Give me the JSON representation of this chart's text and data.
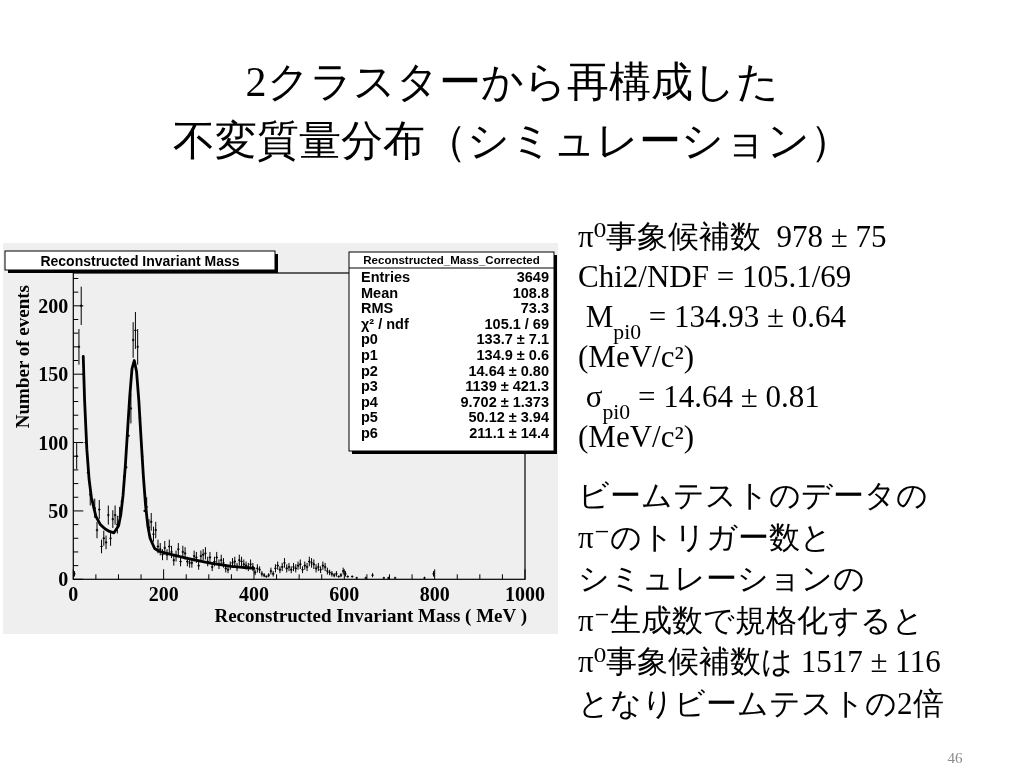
{
  "chart_data": {
    "type": "scatter",
    "title": "2クラスターから再構成した",
    "subtitle": "不変質量分布（シミュレーション）",
    "xlabel": "Reconstructed Invariant Mass ( MeV )",
    "ylabel": "Number of events",
    "xlim": [
      0,
      1000
    ],
    "ylim": [
      0,
      224
    ],
    "xticks": [
      0,
      {
        "value": 50,
        "label": null
      },
      {
        "value": 100,
        "label": null
      },
      {
        "value": 150,
        "label": null
      },
      200,
      {
        "value": 250,
        "label": null
      },
      {
        "value": 300,
        "label": null
      },
      {
        "value": 350,
        "label": null
      },
      400,
      {
        "value": 450,
        "label": null
      },
      {
        "value": 500,
        "label": null
      },
      {
        "value": 550,
        "label": null
      },
      600,
      {
        "value": 650,
        "label": null
      },
      {
        "value": 700,
        "label": null
      },
      {
        "value": 750,
        "label": null
      },
      800,
      {
        "value": 850,
        "label": null
      },
      {
        "value": 900,
        "label": null
      },
      {
        "value": 950,
        "label": null
      },
      1000
    ],
    "yticks": [
      0,
      {
        "value": 10,
        "label": null
      },
      {
        "value": 20,
        "label": null
      },
      {
        "value": 30,
        "label": null
      },
      {
        "value": 40,
        "label": null
      },
      50,
      {
        "value": 60,
        "label": null
      },
      {
        "value": 70,
        "label": null
      },
      {
        "value": 80,
        "label": null
      },
      {
        "value": 90,
        "label": null
      },
      100,
      {
        "value": 110,
        "label": null
      },
      {
        "value": 120,
        "label": null
      },
      {
        "value": 130,
        "label": null
      },
      {
        "value": 140,
        "label": null
      },
      150,
      {
        "value": 160,
        "label": null
      },
      {
        "value": 170,
        "label": null
      },
      {
        "value": 180,
        "label": null
      },
      {
        "value": 190,
        "label": null
      },
      200,
      {
        "value": 210,
        "label": null
      },
      {
        "value": 220,
        "label": null
      }
    ],
    "series": [
      {
        "color": "#000000",
        "marker": "cross",
        "x": [
          2.5,
          7.5,
          12.5,
          17.5,
          22.5,
          27.5,
          32.5,
          37.5,
          42.5,
          47.5,
          52.5,
          57.5,
          62.5,
          67.5,
          72.5,
          77.5,
          82.5,
          87.5,
          92.5,
          97.5,
          102.5,
          107.5,
          112.5,
          117.5,
          122.5,
          127.5,
          132.5,
          137.5,
          142.5,
          147.5,
          152.5,
          157.5,
          162.5,
          167.5,
          172.5,
          177.5,
          182.5,
          187.5,
          192.5,
          197.5,
          202.5,
          207.5,
          212.5,
          217.5,
          222.5,
          227.5,
          232.5,
          237.5,
          242.5,
          247.5,
          252.5,
          257.5,
          262.5,
          267.5,
          272.5,
          277.5,
          282.5,
          287.5,
          292.5,
          297.5,
          302.5,
          307.5,
          312.5,
          317.5,
          322.5,
          327.5,
          332.5,
          337.5,
          342.5,
          347.5,
          352.5,
          357.5,
          362.5,
          367.5,
          372.5,
          377.5,
          382.5,
          387.5,
          392.5,
          397.5,
          402.5,
          407.5,
          412.5,
          417.5,
          422.5,
          427.5,
          432.5,
          437.5,
          442.5,
          447.5,
          452.5,
          457.5,
          462.5,
          467.5,
          472.5,
          477.5,
          482.5,
          487.5,
          492.5,
          497.5,
          502.5,
          507.5,
          512.5,
          517.5,
          522.5,
          527.5,
          532.5,
          537.5,
          542.5,
          547.5,
          552.5,
          557.5,
          562.5,
          567.5,
          572.5,
          577.5,
          582.5,
          587.5,
          592.5,
          597.5,
          602.5,
          607.5,
          617.5,
          627.5,
          647.5,
          662.5,
          687.5,
          697.5,
          712.5,
          777.5,
          797.5
        ],
        "values": [
          4,
          90,
          170,
          200,
          150,
          100,
          78,
          62,
          57,
          52,
          36,
          51,
          24,
          30,
          27,
          47,
          30,
          44,
          47,
          40,
          46,
          57,
          75,
          82,
          105,
          125,
          175,
          182,
          170,
          118,
          90,
          50,
          53,
          38,
          42,
          33,
          36,
          24,
          22,
          18,
          23,
          18,
          24,
          20,
          14,
          17,
          22,
          13,
          20,
          19,
          13,
          12,
          12,
          17,
          16,
          10,
          17,
          18,
          19,
          13,
          16,
          9,
          13,
          16,
          11,
          14,
          12,
          8,
          7,
          10,
          12,
          13,
          9,
          14,
          13,
          11,
          10,
          9,
          11,
          9,
          5,
          8,
          7,
          4,
          3,
          2,
          3,
          6,
          4,
          8,
          10,
          7,
          9,
          12,
          8,
          9,
          7,
          9,
          8,
          10,
          11,
          7,
          10,
          9,
          13,
          12,
          11,
          8,
          9,
          7,
          10,
          9,
          6,
          5,
          4,
          3,
          4,
          2,
          3,
          6,
          4,
          2,
          2,
          1,
          1,
          3,
          1,
          1,
          1,
          1,
          4
        ],
        "errors": [
          2,
          9.5,
          13,
          14,
          null,
          null,
          null,
          8,
          null,
          7,
          6,
          7,
          5,
          5.5,
          5,
          7,
          5.5,
          6.5,
          7,
          6.5,
          7,
          null,
          null,
          null,
          null,
          11,
          13,
          13.5,
          13,
          null,
          null,
          null,
          7,
          6,
          6.5,
          5.5,
          6,
          5,
          4.5,
          4,
          5,
          4,
          5,
          4.5,
          4,
          4,
          4.5,
          3.5,
          4.5,
          4.5,
          3.5,
          3.5,
          3.5,
          4,
          4,
          3,
          4,
          4,
          4.5,
          3.5,
          4,
          3,
          3.5,
          4,
          3.5,
          4,
          3.5,
          3,
          2.5,
          3,
          3.5,
          3.5,
          3,
          4,
          3.5,
          3.5,
          3,
          3,
          3.5,
          3,
          2,
          3,
          2.5,
          2,
          1.5,
          null,
          1.5,
          2.5,
          2,
          3,
          3,
          2.5,
          3,
          3.5,
          3,
          3,
          2.5,
          3,
          3,
          3,
          3.5,
          2.5,
          3,
          3,
          3.5,
          3.5,
          3.5,
          3,
          3,
          2.5,
          3,
          3,
          2.5,
          2,
          2,
          1.5,
          2,
          null,
          1.5,
          2.5,
          2,
          null,
          null,
          null,
          null,
          1.5,
          null,
          null,
          null,
          null,
          2
        ]
      },
      {
        "type": "line",
        "color": "#000000",
        "x": [
          22,
          25,
          30,
          35,
          40,
          50,
          60,
          70,
          80,
          90,
          100,
          105,
          110,
          115,
          120,
          125,
          130,
          135,
          140,
          145,
          150,
          155,
          160,
          165,
          170,
          180,
          190,
          200,
          250,
          300,
          350,
          400
        ],
        "values": [
          163,
          131,
          95,
          73,
          60,
          46,
          40,
          37,
          35,
          34,
          39,
          47,
          61,
          82,
          108,
          134,
          154,
          160,
          152,
          131,
          103,
          76,
          54,
          39,
          30,
          22.5,
          20.5,
          19.5,
          15.5,
          12,
          9.5,
          8
        ]
      }
    ],
    "annotations": [
      "Reconstructed Invariant Mass",
      "Reconstructed_Mass_Corrected",
      "Entries\t3649",
      "Mean\t108.8",
      "RMS\t73.3",
      "χ² / ndf\t105.1 / 69",
      "p0\t133.7 ± 7.1",
      "p1\t134.9 ± 0.6",
      "p2\t14.64 ± 0.80",
      "p3\t1139 ± 421.3",
      "p4\t9.702 ± 1.373",
      "p5\t50.12 ± 3.94",
      "p6\t211.1 ± 14.4",
      "π⁰事象候補数  978 ± 75",
      "Chi2/NDF = 105.1/69",
      " M$_{pi0}$ = 134.93 ± 0.64",
      "(MeV/c²)",
      " σ$_{pi0}$ = 14.64 ± 0.81",
      "(MeV/c²)",
      "ビームテストのデータの",
      "π⁻のトリガー数と",
      "シミュレーションの",
      "π⁻生成数で規格化すると",
      "π⁰事象候補数は 1517 ± 116",
      "となりビームテストの2倍",
      "46"
    ]
  }
}
